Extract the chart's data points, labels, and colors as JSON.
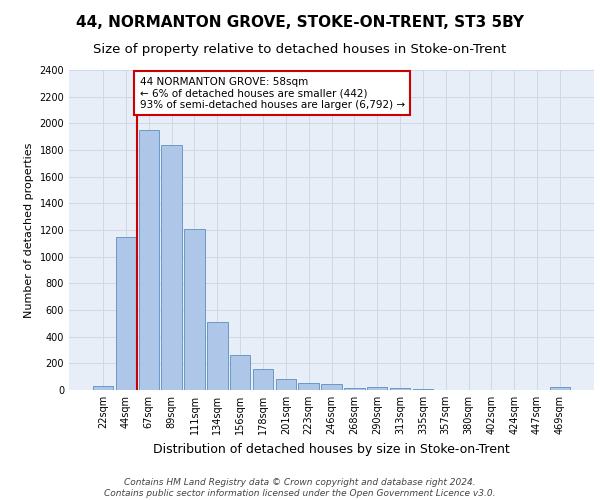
{
  "title": "44, NORMANTON GROVE, STOKE-ON-TRENT, ST3 5BY",
  "subtitle": "Size of property relative to detached houses in Stoke-on-Trent",
  "xlabel": "Distribution of detached houses by size in Stoke-on-Trent",
  "ylabel": "Number of detached properties",
  "categories": [
    "22sqm",
    "44sqm",
    "67sqm",
    "89sqm",
    "111sqm",
    "134sqm",
    "156sqm",
    "178sqm",
    "201sqm",
    "223sqm",
    "246sqm",
    "268sqm",
    "290sqm",
    "313sqm",
    "335sqm",
    "357sqm",
    "380sqm",
    "402sqm",
    "424sqm",
    "447sqm",
    "469sqm"
  ],
  "values": [
    30,
    1145,
    1950,
    1835,
    1205,
    510,
    265,
    155,
    80,
    50,
    45,
    15,
    25,
    15,
    5,
    0,
    0,
    0,
    0,
    0,
    20
  ],
  "bar_color": "#aec6e8",
  "bar_edgecolor": "#5a8fc0",
  "vline_x": 1.5,
  "vline_color": "#cc0000",
  "annotation_text": "44 NORMANTON GROVE: 58sqm\n← 6% of detached houses are smaller (442)\n93% of semi-detached houses are larger (6,792) →",
  "annotation_box_color": "#ffffff",
  "annotation_box_edgecolor": "#cc0000",
  "ylim": [
    0,
    2400
  ],
  "yticks": [
    0,
    200,
    400,
    600,
    800,
    1000,
    1200,
    1400,
    1600,
    1800,
    2000,
    2200,
    2400
  ],
  "grid_color": "#d0d8e8",
  "background_color": "#e8eef8",
  "footer_line1": "Contains HM Land Registry data © Crown copyright and database right 2024.",
  "footer_line2": "Contains public sector information licensed under the Open Government Licence v3.0.",
  "title_fontsize": 11,
  "subtitle_fontsize": 9.5,
  "xlabel_fontsize": 9,
  "ylabel_fontsize": 8,
  "tick_fontsize": 7,
  "annotation_fontsize": 7.5,
  "footer_fontsize": 6.5
}
